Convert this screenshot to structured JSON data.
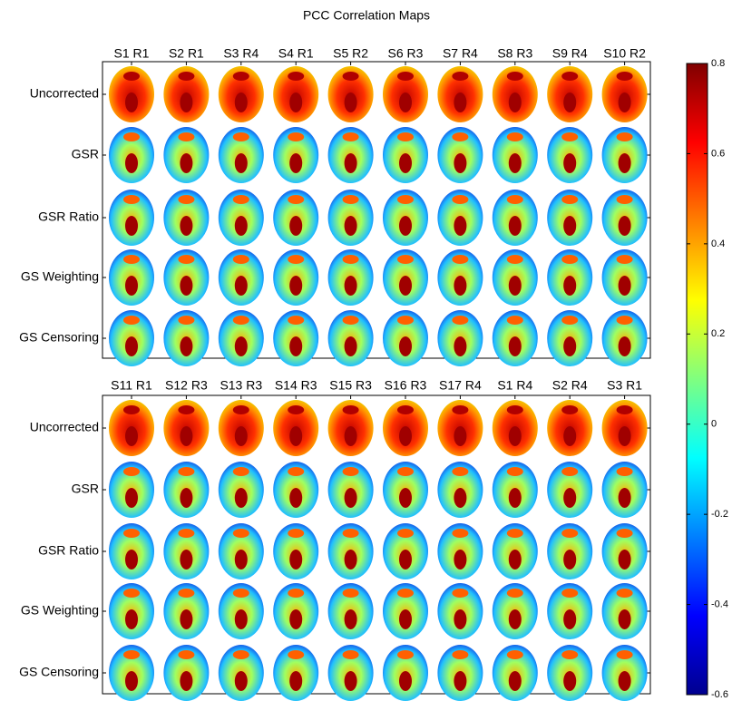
{
  "chart_data": {
    "type": "image-grid",
    "title": "PCC Correlation Maps",
    "panels": [
      {
        "columns": [
          "S1 R1",
          "S2 R1",
          "S3 R4",
          "S4 R1",
          "S5 R2",
          "S6 R3",
          "S7 R4",
          "S8 R3",
          "S9 R4",
          "S10 R2"
        ],
        "rows": [
          "Uncorrected",
          "GSR",
          "GSR Ratio",
          "GS Weighting",
          "GS Censoring"
        ]
      },
      {
        "columns": [
          "S11 R1",
          "S12 R3",
          "S13 R3",
          "S14 R3",
          "S15 R3",
          "S16 R3",
          "S17 R4",
          "S1 R4",
          "S2 R4",
          "S3 R1"
        ],
        "rows": [
          "Uncorrected",
          "GSR",
          "GSR Ratio",
          "GS Weighting",
          "GS Censoring"
        ]
      }
    ],
    "colorbar": {
      "clim": [
        -0.6,
        0.8
      ],
      "ticks": [
        -0.6,
        -0.4,
        -0.2,
        0,
        0.2,
        0.4,
        0.6,
        0.8
      ],
      "colormap": "jet"
    }
  }
}
